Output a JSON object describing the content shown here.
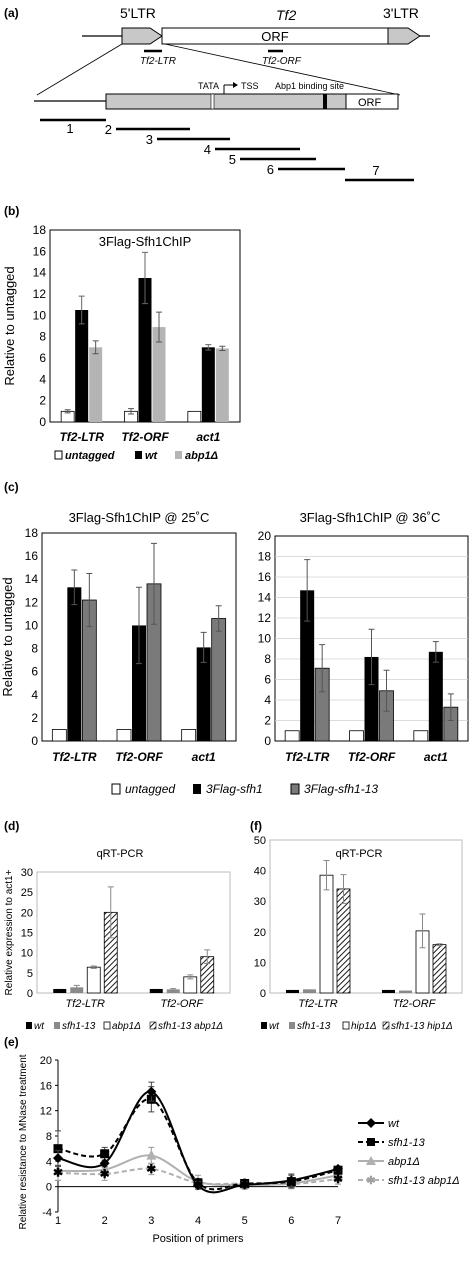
{
  "panel_a": {
    "label": "(a)",
    "ltr5": "5'LTR",
    "ltr3": "3'LTR",
    "tf2": "Tf2",
    "orf": "ORF",
    "tf2_ltr": "Tf2-LTR",
    "tf2_orf": "Tf2-ORF",
    "tata": "TATA",
    "tss": "TSS",
    "abp1_site": "Abp1 binding site",
    "orf_zoom": "ORF",
    "primer_labels": [
      "1",
      "2",
      "3",
      "4",
      "5",
      "6",
      "7"
    ]
  },
  "panel_b": {
    "label": "(b)",
    "legend": [
      "untagged",
      "wt",
      "abp1Δ"
    ]
  },
  "panel_c": {
    "label": "(c)",
    "legend": [
      "untagged",
      "3Flag-sfh1",
      "3Flag-sfh1-13"
    ]
  },
  "panel_d": {
    "label": "(d)",
    "legend": [
      "wt",
      "sfh1-13",
      "abp1Δ",
      "sfh1-13 abp1Δ"
    ]
  },
  "panel_e": {
    "label": "(e)",
    "legend": [
      "wt",
      "sfh1-13",
      "abp1Δ",
      "sfh1-13 abp1Δ"
    ]
  },
  "panel_f": {
    "label": "(f)",
    "legend": [
      "wt",
      "sfh1-13",
      "hip1Δ",
      "sfh1-13 hip1Δ"
    ]
  },
  "chart_data": [
    {
      "id": "b",
      "type": "bar",
      "title": "3Flag-Sfh1ChIP",
      "ylabel": "Relative to untagged",
      "ylim": [
        0,
        18
      ],
      "yticks": [
        0,
        2,
        4,
        6,
        8,
        10,
        12,
        14,
        16,
        18
      ],
      "categories": [
        "Tf2-LTR",
        "Tf2-ORF",
        "act1"
      ],
      "series": [
        {
          "name": "untagged",
          "values": [
            1.0,
            1.0,
            1.0
          ],
          "errors": [
            0.15,
            0.25,
            0
          ]
        },
        {
          "name": "wt",
          "values": [
            10.5,
            13.5,
            7.0
          ],
          "errors": [
            1.3,
            2.4,
            0.25
          ]
        },
        {
          "name": "abp1Δ",
          "values": [
            7.0,
            8.9,
            6.9
          ],
          "errors": [
            0.6,
            1.4,
            0.2
          ]
        }
      ]
    },
    {
      "id": "c1",
      "type": "bar",
      "title": "3Flag-Sfh1ChIP @ 25˚C",
      "ylabel": "Relative to untagged",
      "ylim": [
        0,
        18
      ],
      "yticks": [
        0,
        2,
        4,
        6,
        8,
        10,
        12,
        14,
        16,
        18
      ],
      "categories": [
        "Tf2-LTR",
        "Tf2-ORF",
        "act1"
      ],
      "series": [
        {
          "name": "untagged",
          "values": [
            1.0,
            1.0,
            1.0
          ],
          "errors": [
            0,
            0,
            0
          ]
        },
        {
          "name": "3Flag-sfh1",
          "values": [
            13.3,
            10.0,
            8.1
          ],
          "errors": [
            1.5,
            3.3,
            1.3
          ]
        },
        {
          "name": "3Flag-sfh1-13",
          "values": [
            12.2,
            13.6,
            10.6
          ],
          "errors": [
            2.3,
            3.5,
            1.1
          ]
        }
      ]
    },
    {
      "id": "c2",
      "type": "bar",
      "title": "3Flag-Sfh1ChIP @ 36˚C",
      "ylabel": "",
      "ylim": [
        0,
        20
      ],
      "yticks": [
        0,
        2,
        4,
        6,
        8,
        10,
        12,
        14,
        16,
        18,
        20
      ],
      "categories": [
        "Tf2-LTR",
        "Tf2-ORF",
        "act1"
      ],
      "series": [
        {
          "name": "untagged",
          "values": [
            1.0,
            1.0,
            1.0
          ],
          "errors": [
            0,
            0,
            0
          ]
        },
        {
          "name": "3Flag-sfh1",
          "values": [
            14.7,
            8.2,
            8.7
          ],
          "errors": [
            3.0,
            2.7,
            1.0
          ]
        },
        {
          "name": "3Flag-sfh1-13",
          "values": [
            7.1,
            4.9,
            3.3
          ],
          "errors": [
            2.3,
            2.0,
            1.3
          ]
        }
      ]
    },
    {
      "id": "d",
      "type": "bar",
      "title": "qRT-PCR",
      "ylabel": "Relative expression to act1+",
      "ylim": [
        0,
        30
      ],
      "yticks": [
        0,
        5,
        10,
        15,
        20,
        25,
        30
      ],
      "categories": [
        "Tf2-LTR",
        "Tf2-ORF"
      ],
      "series": [
        {
          "name": "wt",
          "values": [
            1.0,
            1.0
          ],
          "errors": [
            0,
            0
          ]
        },
        {
          "name": "sfh1-13",
          "values": [
            1.4,
            0.9
          ],
          "errors": [
            0.5,
            0.2
          ]
        },
        {
          "name": "abp1Δ",
          "values": [
            6.4,
            4.0
          ],
          "errors": [
            0.3,
            0.5
          ]
        },
        {
          "name": "sfh1-13 abp1Δ",
          "values": [
            20.0,
            9.0
          ],
          "errors": [
            6.3,
            1.7
          ]
        }
      ]
    },
    {
      "id": "f",
      "type": "bar",
      "title": "qRT-PCR",
      "ylabel": "",
      "ylim": [
        0,
        50
      ],
      "yticks": [
        0,
        10,
        20,
        30,
        40,
        50
      ],
      "categories": [
        "Tf2-LTR",
        "Tf2-ORF"
      ],
      "series": [
        {
          "name": "wt",
          "values": [
            1.0,
            1.0
          ],
          "errors": [
            0,
            0
          ]
        },
        {
          "name": "sfh1-13",
          "values": [
            1.2,
            0.8
          ],
          "errors": [
            0,
            0
          ]
        },
        {
          "name": "hip1Δ",
          "values": [
            38.5,
            20.3
          ],
          "errors": [
            4.8,
            5.5
          ]
        },
        {
          "name": "sfh1-13 hip1Δ",
          "values": [
            34.0,
            15.8
          ],
          "errors": [
            4.7,
            0.3
          ]
        }
      ]
    },
    {
      "id": "e",
      "type": "line",
      "title": "",
      "xlabel": "Position of primers",
      "ylabel": "Relative resistance to MNase treatment",
      "ylim": [
        -4,
        20
      ],
      "yticks": [
        -4,
        0,
        4,
        8,
        12,
        16,
        20
      ],
      "x": [
        1,
        2,
        3,
        4,
        5,
        6,
        7
      ],
      "series": [
        {
          "name": "wt",
          "values": [
            4.5,
            3.7,
            15.0,
            0.2,
            0.3,
            1.0,
            2.8
          ],
          "errors": [
            1.2,
            0.5,
            1.5,
            0.6,
            0.5,
            1.0,
            0.4
          ]
        },
        {
          "name": "sfh1-13",
          "values": [
            6.0,
            5.2,
            13.8,
            0.6,
            0.5,
            0.8,
            2.6
          ],
          "errors": [
            2.8,
            1.0,
            2.0,
            0.6,
            0.5,
            1.0,
            0.5
          ]
        },
        {
          "name": "abp1Δ",
          "values": [
            2.5,
            2.7,
            4.9,
            0.8,
            0.3,
            0.5,
            1.8
          ],
          "errors": [
            1.5,
            0.8,
            1.3,
            1.0,
            0.7,
            0.8,
            1.0
          ]
        },
        {
          "name": "sfh1-13 abp1Δ",
          "values": [
            2.2,
            2.0,
            2.8,
            0.6,
            0.5,
            0.4,
            1.2
          ],
          "errors": [
            1.2,
            1.0,
            0.9,
            0.7,
            0.5,
            0.7,
            0.8
          ]
        }
      ]
    }
  ]
}
